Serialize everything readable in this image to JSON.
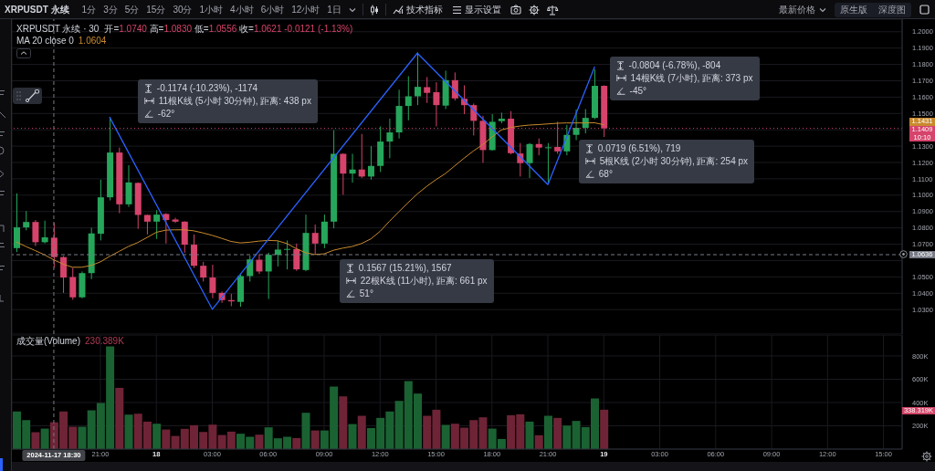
{
  "chart_data": [
    {
      "type": "other",
      "title": "XRPUSDT 永续",
      "categories": [
        "1分",
        "3分",
        "5分",
        "15分",
        "30分",
        "1小时",
        "4小时",
        "6小时",
        "12小时",
        "1日"
      ],
      "annotations": [
        "技术指标",
        "显示设置"
      ]
    },
    {
      "type": "other",
      "annotations": [
        "最新价格",
        "原生版",
        "深度图"
      ]
    },
    {
      "type": "candlestick",
      "title": "XRPUSDT 永续 · 30",
      "subtitle": "开=1.0740 高=1.0830 低=1.0556 收=1.0621 -0.0121 (-1.13%)",
      "x": [
        "2024-11-17T16:30",
        "2024-11-17T17:00",
        "2024-11-17T17:30",
        "2024-11-17T18:00",
        "2024-11-17T18:30",
        "2024-11-17T19:00",
        "2024-11-17T19:30",
        "2024-11-17T20:00",
        "2024-11-17T20:30",
        "2024-11-17T21:00",
        "2024-11-17T21:30",
        "2024-11-17T22:00",
        "2024-11-17T22:30",
        "2024-11-17T23:00",
        "2024-11-17T23:30",
        "2024-11-18T00:00",
        "2024-11-18T00:30",
        "2024-11-18T01:00",
        "2024-11-18T01:30",
        "2024-11-18T02:00",
        "2024-11-18T02:30",
        "2024-11-18T03:00",
        "2024-11-18T03:30",
        "2024-11-18T04:00",
        "2024-11-18T04:30",
        "2024-11-18T05:00",
        "2024-11-18T05:30",
        "2024-11-18T06:00",
        "2024-11-18T06:30",
        "2024-11-18T07:00",
        "2024-11-18T07:30",
        "2024-11-18T08:00",
        "2024-11-18T08:30",
        "2024-11-18T09:00",
        "2024-11-18T09:30",
        "2024-11-18T10:00",
        "2024-11-18T10:30",
        "2024-11-18T11:00",
        "2024-11-18T11:30",
        "2024-11-18T12:00",
        "2024-11-18T12:30",
        "2024-11-18T13:00",
        "2024-11-18T13:30",
        "2024-11-18T14:00",
        "2024-11-18T14:30",
        "2024-11-18T15:00",
        "2024-11-18T15:30",
        "2024-11-18T16:00",
        "2024-11-18T16:30",
        "2024-11-18T17:00",
        "2024-11-18T17:30",
        "2024-11-18T18:00",
        "2024-11-18T18:30",
        "2024-11-18T19:00",
        "2024-11-18T19:30",
        "2024-11-18T20:00",
        "2024-11-18T20:30",
        "2024-11-18T21:00",
        "2024-11-18T21:30",
        "2024-11-18T22:00",
        "2024-11-18T22:30",
        "2024-11-18T23:00",
        "2024-11-18T23:30",
        "2024-11-19T00:00"
      ],
      "ohlc": [
        [
          1.0676,
          1.1011,
          1.0652,
          1.0803
        ],
        [
          1.0803,
          1.0903,
          1.0785,
          1.0836
        ],
        [
          1.0836,
          1.0848,
          1.0689,
          1.0712
        ],
        [
          1.0712,
          1.0844,
          1.0705,
          1.0742
        ],
        [
          1.074,
          1.083,
          1.0556,
          1.0621
        ],
        [
          1.0621,
          1.0628,
          1.0402,
          1.0496
        ],
        [
          1.0499,
          1.0555,
          1.036,
          1.0375
        ],
        [
          1.0375,
          1.0533,
          1.0369,
          1.0523
        ],
        [
          1.0523,
          1.0801,
          1.0486,
          1.0766
        ],
        [
          1.0764,
          1.1095,
          1.0723,
          1.0987
        ],
        [
          1.0987,
          1.1477,
          1.0968,
          1.1261
        ],
        [
          1.1261,
          1.1291,
          1.089,
          1.0944
        ],
        [
          1.0944,
          1.1183,
          1.0928,
          1.1078
        ],
        [
          1.1075,
          1.1078,
          1.0794,
          1.0879
        ],
        [
          1.0879,
          1.088,
          1.076,
          1.0838
        ],
        [
          1.0838,
          1.0909,
          1.0732,
          1.0881
        ],
        [
          1.0885,
          1.089,
          1.0704,
          1.0848
        ],
        [
          1.0851,
          1.0862,
          1.083,
          1.0838
        ],
        [
          1.0838,
          1.084,
          1.0648,
          1.0697
        ],
        [
          1.0697,
          1.076,
          1.0555,
          1.0568
        ],
        [
          1.0568,
          1.0592,
          1.0471,
          1.0496
        ],
        [
          1.0496,
          1.0574,
          1.0369,
          1.0402
        ],
        [
          1.0402,
          1.041,
          1.0341,
          1.0358
        ],
        [
          1.0358,
          1.0397,
          1.0321,
          1.035
        ],
        [
          1.0347,
          1.0515,
          1.0317,
          1.0505
        ],
        [
          1.0505,
          1.063,
          1.0471,
          1.0607
        ],
        [
          1.0605,
          1.0639,
          1.0518,
          1.0533
        ],
        [
          1.0533,
          1.0648,
          1.0365,
          1.0635
        ],
        [
          1.0635,
          1.0719,
          1.0564,
          1.0667
        ],
        [
          1.0667,
          1.0723,
          1.0546,
          1.0671
        ],
        [
          1.067,
          1.0704,
          1.0537,
          1.0546
        ],
        [
          1.0542,
          1.0881,
          1.0535,
          1.0769
        ],
        [
          1.0769,
          1.082,
          1.0639,
          1.0704
        ],
        [
          1.0704,
          1.0881,
          1.0676,
          1.0838
        ],
        [
          1.0838,
          1.1397,
          1.0797,
          1.1253
        ],
        [
          1.1253,
          1.1255,
          1.1002,
          1.1132
        ],
        [
          1.1132,
          1.1253,
          1.1077,
          1.1157
        ],
        [
          1.1157,
          1.1375,
          1.1105,
          1.1114
        ],
        [
          1.1114,
          1.13,
          1.1095,
          1.1179
        ],
        [
          1.1179,
          1.1421,
          1.1142,
          1.1328
        ],
        [
          1.1328,
          1.1468,
          1.1226,
          1.1384
        ],
        [
          1.1384,
          1.1645,
          1.1347,
          1.1546
        ],
        [
          1.1546,
          1.1728,
          1.1458,
          1.1605
        ],
        [
          1.1605,
          1.1874,
          1.1551,
          1.1663
        ],
        [
          1.1661,
          1.1723,
          1.1564,
          1.1626
        ],
        [
          1.163,
          1.1691,
          1.1421,
          1.1551
        ],
        [
          1.1548,
          1.1762,
          1.1527,
          1.1704
        ],
        [
          1.1704,
          1.1751,
          1.1579,
          1.1592
        ],
        [
          1.159,
          1.1672,
          1.1496,
          1.1551
        ],
        [
          1.1551,
          1.1561,
          1.1365,
          1.1455
        ],
        [
          1.1455,
          1.1486,
          1.1198,
          1.1276
        ],
        [
          1.1276,
          1.1496,
          1.1272,
          1.1449
        ],
        [
          1.1453,
          1.1505,
          1.144,
          1.1468
        ],
        [
          1.1468,
          1.1514,
          1.125,
          1.1257
        ],
        [
          1.1255,
          1.1319,
          1.1114,
          1.1196
        ],
        [
          1.1196,
          1.1319,
          1.1105,
          1.1313
        ],
        [
          1.1313,
          1.1347,
          1.1244,
          1.1291
        ],
        [
          1.1291,
          1.1319,
          1.107,
          1.1293
        ],
        [
          1.1295,
          1.1449,
          1.1253,
          1.1268
        ],
        [
          1.1268,
          1.143,
          1.1244,
          1.1369
        ],
        [
          1.1369,
          1.1524,
          1.1337,
          1.1412
        ],
        [
          1.1412,
          1.1527,
          1.1378,
          1.1473
        ],
        [
          1.1473,
          1.1769,
          1.1465,
          1.1669
        ],
        [
          1.1669,
          1.1672,
          1.1356,
          1.1409
        ]
      ],
      "colors": [
        "#26a65b",
        "#26a65b",
        "#d6436b",
        "#26a65b",
        "#d6436b",
        "#d6436b",
        "#d6436b",
        "#26a65b",
        "#26a65b",
        "#26a65b",
        "#26a65b",
        "#d6436b",
        "#26a65b",
        "#d6436b",
        "#d6436b",
        "#26a65b",
        "#d6436b",
        "#d6436b",
        "#d6436b",
        "#d6436b",
        "#d6436b",
        "#d6436b",
        "#d6436b",
        "#d6436b",
        "#26a65b",
        "#26a65b",
        "#d6436b",
        "#26a65b",
        "#26a65b",
        "#26a65b",
        "#d6436b",
        "#26a65b",
        "#d6436b",
        "#26a65b",
        "#26a65b",
        "#d6436b",
        "#26a65b",
        "#d6436b",
        "#26a65b",
        "#26a65b",
        "#26a65b",
        "#26a65b",
        "#26a65b",
        "#26a65b",
        "#d6436b",
        "#d6436b",
        "#26a65b",
        "#d6436b",
        "#d6436b",
        "#d6436b",
        "#d6436b",
        "#26a65b",
        "#26a65b",
        "#d6436b",
        "#d6436b",
        "#26a65b",
        "#d6436b",
        "#26a65b",
        "#d6436b",
        "#26a65b",
        "#26a65b",
        "#26a65b",
        "#26a65b",
        "#d6436b"
      ],
      "series": [
        {
          "type": "line",
          "color": "#c98a2e",
          "values": [
            1.0713,
            1.0686,
            1.0661,
            1.0635,
            1.0604,
            1.0578,
            1.0559,
            1.0559,
            1.057,
            1.0592,
            1.0626,
            1.0656,
            1.0686,
            1.071,
            1.0741,
            1.0773,
            1.0786,
            1.0788,
            1.0788,
            1.0782,
            1.0769,
            1.0754,
            1.0736,
            1.0717,
            1.0708,
            1.0712,
            1.0719,
            1.0723,
            1.0721,
            1.0704,
            1.0673,
            1.0648,
            1.0637,
            1.0641,
            1.0663,
            1.0676,
            1.0686,
            1.0704,
            1.0732,
            1.0779,
            1.084,
            1.0898,
            1.0954,
            1.1008,
            1.1054,
            1.1095,
            1.1132,
            1.1179,
            1.1226,
            1.127,
            1.1309,
            1.1356,
            1.1399,
            1.1414,
            1.1423,
            1.1429,
            1.1432,
            1.1436,
            1.144,
            1.1442,
            1.1442,
            1.1442,
            1.1443,
            1.1431
          ]
        },
        {
          "type": "line",
          "color": "#2962ff",
          "x": [
            "2024-11-17T21:30",
            "2024-11-18T03:00",
            "2024-11-18T14:00",
            "2024-11-18T21:00",
            "2024-11-18T23:30"
          ],
          "values": [
            1.1476,
            1.0302,
            1.1869,
            1.1065,
            1.1784
          ]
        }
      ],
      "xlim": [
        "2024-11-17T16:15",
        "2024-11-19T16:00"
      ],
      "xticks": [
        {
          "value": "2024-11-17T21:00",
          "label": null
        },
        {
          "value": "2024-11-18T00:00",
          "label": null
        },
        {
          "value": "2024-11-18T03:00",
          "label": null
        },
        {
          "value": "2024-11-18T06:00",
          "label": null
        },
        {
          "value": "2024-11-18T09:00",
          "label": null
        },
        {
          "value": "2024-11-18T12:00",
          "label": null
        },
        {
          "value": "2024-11-18T15:00",
          "label": null
        },
        {
          "value": "2024-11-18T18:00",
          "label": null
        },
        {
          "value": "2024-11-18T21:00",
          "label": null
        },
        {
          "value": "2024-11-19T00:00",
          "label": null
        },
        {
          "value": "2024-11-19T03:00",
          "label": null
        },
        {
          "value": "2024-11-19T06:00",
          "label": null
        },
        {
          "value": "2024-11-19T09:00",
          "label": null
        },
        {
          "value": "2024-11-19T12:00",
          "label": null
        },
        {
          "value": "2024-11-19T15:00",
          "label": null
        }
      ],
      "ylim": [
        1.015,
        1.2077
      ],
      "yticks": [
        {
          "value": 1.03,
          "label": "1.0300"
        },
        {
          "value": 1.04,
          "label": "1.0400"
        },
        {
          "value": 1.05,
          "label": "1.0500"
        },
        {
          "value": 1.06,
          "label": null
        },
        {
          "value": 1.07,
          "label": "1.0700"
        },
        {
          "value": 1.08,
          "label": "1.0800"
        },
        {
          "value": 1.09,
          "label": "1.0900"
        },
        {
          "value": 1.1,
          "label": "1.1000"
        },
        {
          "value": 1.11,
          "label": "1.1100"
        },
        {
          "value": 1.12,
          "label": "1.1200"
        },
        {
          "value": 1.13,
          "label": "1.1300"
        },
        {
          "value": 1.14,
          "label": null
        },
        {
          "value": 1.15,
          "label": "1.1500"
        },
        {
          "value": 1.16,
          "label": "1.1600"
        },
        {
          "value": 1.17,
          "label": "1.1700"
        },
        {
          "value": 1.18,
          "label": "1.1800"
        },
        {
          "value": 1.19,
          "label": "1.1900"
        },
        {
          "value": 1.2,
          "label": "1.2000"
        }
      ],
      "tick_labels": "y",
      "grid": true,
      "ref_lines": [
        {
          "axis": "x",
          "value": "2024-11-17T18:30",
          "color": "#787b86",
          "line_style": "dashed"
        },
        {
          "axis": "y",
          "value": 1.0636,
          "label": "1.0636",
          "color": "#787b86",
          "line_style": "dashed"
        },
        {
          "axis": "y",
          "value": 1.1409,
          "label": "1.1409\n10:10",
          "color": "#d6436b",
          "line_style": "dotted"
        }
      ],
      "annotations": [
        "-0.1174 (-10.23%), -1174\n11根K线 (5小时 30分钟), 距离: 438 px\n-62°",
        "0.1567 (15.21%), 1567\n22根K线 (11小时), 距离: 661 px\n51°",
        "-0.0804 (-6.78%), -804\n14根K线 (7小时), 距离: 373 px\n-45°",
        "0.0719 (6.51%), 719\n5根K线 (2小时 30分钟), 距离: 254 px\n68°",
        "MA 20 close 0",
        "1.0604",
        "1.1431"
      ]
    },
    {
      "type": "bar",
      "title": "成交量(Volume)",
      "x": [
        "2024-11-17T16:30",
        "2024-11-17T17:00",
        "2024-11-17T17:30",
        "2024-11-17T18:00",
        "2024-11-17T18:30",
        "2024-11-17T19:00",
        "2024-11-17T19:30",
        "2024-11-17T20:00",
        "2024-11-17T20:30",
        "2024-11-17T21:00",
        "2024-11-17T21:30",
        "2024-11-17T22:00",
        "2024-11-17T22:30",
        "2024-11-17T23:00",
        "2024-11-17T23:30",
        "2024-11-18T00:00",
        "2024-11-18T00:30",
        "2024-11-18T01:00",
        "2024-11-18T01:30",
        "2024-11-18T02:00",
        "2024-11-18T02:30",
        "2024-11-18T03:00",
        "2024-11-18T03:30",
        "2024-11-18T04:00",
        "2024-11-18T04:30",
        "2024-11-18T05:00",
        "2024-11-18T05:30",
        "2024-11-18T06:00",
        "2024-11-18T06:30",
        "2024-11-18T07:00",
        "2024-11-18T07:30",
        "2024-11-18T08:00",
        "2024-11-18T08:30",
        "2024-11-18T09:00",
        "2024-11-18T09:30",
        "2024-11-18T10:00",
        "2024-11-18T10:30",
        "2024-11-18T11:00",
        "2024-11-18T11:30",
        "2024-11-18T12:00",
        "2024-11-18T12:30",
        "2024-11-18T13:00",
        "2024-11-18T13:30",
        "2024-11-18T14:00",
        "2024-11-18T14:30",
        "2024-11-18T15:00",
        "2024-11-18T15:30",
        "2024-11-18T16:00",
        "2024-11-18T16:30",
        "2024-11-18T17:00",
        "2024-11-18T17:30",
        "2024-11-18T18:00",
        "2024-11-18T18:30",
        "2024-11-18T19:00",
        "2024-11-18T19:30",
        "2024-11-18T20:00",
        "2024-11-18T20:30",
        "2024-11-18T21:00",
        "2024-11-18T21:30",
        "2024-11-18T22:00",
        "2024-11-18T22:30",
        "2024-11-18T23:00",
        "2024-11-18T23:30",
        "2024-11-19T00:00"
      ],
      "values": [
        323,
        249,
        145,
        176,
        230.389,
        323,
        192,
        192,
        333,
        396,
        882,
        526,
        296,
        304,
        236,
        218,
        168,
        113,
        174,
        205,
        147,
        210,
        121,
        150,
        132,
        106,
        124,
        187,
        93,
        106,
        95,
        312,
        160,
        160,
        537,
        453,
        215,
        286,
        181,
        268,
        323,
        414,
        584,
        477,
        286,
        338,
        208,
        218,
        184,
        249,
        273,
        176,
        87,
        291,
        299,
        236,
        119,
        286,
        268,
        202,
        242,
        189,
        435,
        338.319
      ],
      "colors": [
        "#1b6233",
        "#1b6233",
        "#6e2436",
        "#1b6233",
        "#6e2436",
        "#6e2436",
        "#6e2436",
        "#1b6233",
        "#1b6233",
        "#1b6233",
        "#1b6233",
        "#6e2436",
        "#1b6233",
        "#6e2436",
        "#6e2436",
        "#1b6233",
        "#6e2436",
        "#6e2436",
        "#6e2436",
        "#6e2436",
        "#6e2436",
        "#6e2436",
        "#6e2436",
        "#6e2436",
        "#1b6233",
        "#1b6233",
        "#6e2436",
        "#1b6233",
        "#1b6233",
        "#1b6233",
        "#6e2436",
        "#1b6233",
        "#6e2436",
        "#1b6233",
        "#1b6233",
        "#6e2436",
        "#1b6233",
        "#6e2436",
        "#1b6233",
        "#1b6233",
        "#1b6233",
        "#1b6233",
        "#1b6233",
        "#1b6233",
        "#6e2436",
        "#6e2436",
        "#1b6233",
        "#6e2436",
        "#6e2436",
        "#6e2436",
        "#6e2436",
        "#1b6233",
        "#1b6233",
        "#6e2436",
        "#6e2436",
        "#1b6233",
        "#6e2436",
        "#1b6233",
        "#6e2436",
        "#1b6233",
        "#1b6233",
        "#1b6233",
        "#1b6233",
        "#6e2436"
      ],
      "xlim": [
        "2024-11-17T16:15",
        "2024-11-19T16:00"
      ],
      "xticks": [
        {
          "value": "2024-11-17T21:00",
          "label": "21:00"
        },
        {
          "value": "2024-11-18T00:00",
          "label": "18"
        },
        {
          "value": "2024-11-18T03:00",
          "label": "03:00"
        },
        {
          "value": "2024-11-18T06:00",
          "label": "06:00"
        },
        {
          "value": "2024-11-18T09:00",
          "label": "09:00"
        },
        {
          "value": "2024-11-18T12:00",
          "label": "12:00"
        },
        {
          "value": "2024-11-18T15:00",
          "label": "15:00"
        },
        {
          "value": "2024-11-18T18:00",
          "label": "18:00"
        },
        {
          "value": "2024-11-18T21:00",
          "label": "21:00"
        },
        {
          "value": "2024-11-19T00:00",
          "label": "19"
        },
        {
          "value": "2024-11-19T03:00",
          "label": "03:00"
        },
        {
          "value": "2024-11-19T06:00",
          "label": "06:00"
        },
        {
          "value": "2024-11-19T09:00",
          "label": "09:00"
        },
        {
          "value": "2024-11-19T12:00",
          "label": "12:00"
        },
        {
          "value": "2024-11-19T15:00",
          "label": "15:00"
        }
      ],
      "ylim": [
        0,
        980
      ],
      "yticks": [
        {
          "value": 200,
          "label": "200K"
        },
        {
          "value": 400,
          "label": "400K"
        },
        {
          "value": 600,
          "label": "600K"
        },
        {
          "value": 800,
          "label": "800K"
        }
      ],
      "grid": true,
      "ref_lines": [
        {
          "axis": "x",
          "value": "2024-11-17T18:30",
          "label": "2024-11-17 18:30",
          "color": "#787b86",
          "line_style": "dashed"
        }
      ],
      "annotations": [
        "230.389K",
        "338.319K"
      ]
    }
  ]
}
